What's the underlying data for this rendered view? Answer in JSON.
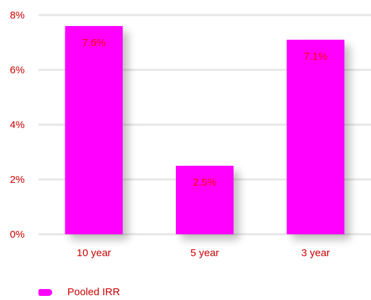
{
  "colors": {
    "bar": "#ff00ff",
    "label": "#cc0000",
    "value_label": "#ff0000",
    "grid": "#e6e6e6",
    "shadow": "#d8d8d8"
  },
  "chart_data": {
    "type": "bar",
    "categories": [
      "10 year",
      "5 year",
      "3 year"
    ],
    "series": [
      {
        "name": "Pooled IRR",
        "values": [
          7.6,
          2.5,
          7.1
        ]
      }
    ],
    "value_labels": [
      "7.6%",
      "2.5%",
      "7.1%"
    ],
    "y_ticks": [
      0,
      2,
      4,
      6,
      8
    ],
    "y_tick_labels": [
      "0%",
      "2%",
      "4%",
      "6%",
      "8%"
    ],
    "ylim": [
      0,
      8
    ],
    "grid": true,
    "legend_position": "bottom-left"
  },
  "legend": {
    "label": "Pooled IRR"
  }
}
